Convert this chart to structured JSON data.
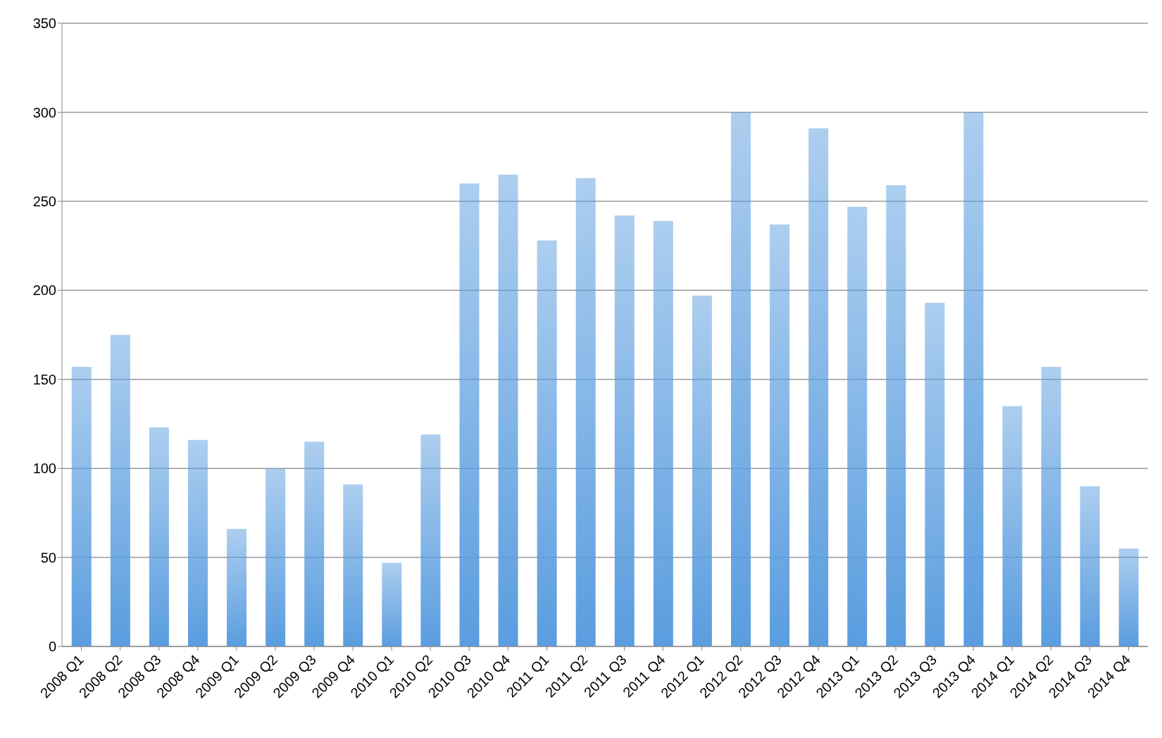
{
  "chart_data": {
    "type": "bar",
    "categories": [
      "2008 Q1",
      "2008 Q2",
      "2008 Q3",
      "2008 Q4",
      "2009 Q1",
      "2009 Q2",
      "2009 Q3",
      "2009 Q4",
      "2010 Q1",
      "2010 Q2",
      "2010 Q3",
      "2010 Q4",
      "2011 Q1",
      "2011 Q2",
      "2011 Q3",
      "2011 Q4",
      "2012 Q1",
      "2012 Q2",
      "2012 Q3",
      "2012 Q4",
      "2013 Q1",
      "2013 Q2",
      "2013 Q3",
      "2013 Q4",
      "2014 Q1",
      "2014 Q2",
      "2014 Q3",
      "2014 Q4"
    ],
    "values": [
      157,
      175,
      123,
      116,
      66,
      100,
      115,
      91,
      47,
      119,
      260,
      265,
      228,
      263,
      242,
      239,
      197,
      300,
      237,
      291,
      247,
      259,
      193,
      300,
      135,
      157,
      90,
      55
    ],
    "color": "#5a9ddf",
    "ylim": [
      0,
      350
    ],
    "yticks": [
      0,
      50,
      100,
      150,
      200,
      250,
      300,
      350
    ],
    "grid": "y"
  }
}
